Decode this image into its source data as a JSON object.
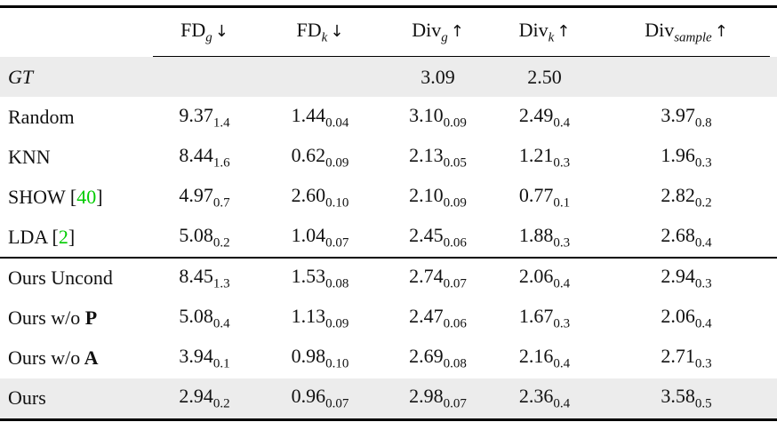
{
  "colors": {
    "highlight_row_bg": "#ececec",
    "citation_green": "#00cc00",
    "rule_black": "#000000"
  },
  "header": {
    "columns": [
      {
        "base": "FD",
        "sub": "g",
        "arrow": "↓"
      },
      {
        "base": "FD",
        "sub": "k",
        "arrow": "↓"
      },
      {
        "base": "Div",
        "sub": "g",
        "arrow": "↑"
      },
      {
        "base": "Div",
        "sub": "k",
        "arrow": "↑"
      },
      {
        "base": "Div",
        "sub": "sample",
        "arrow": "↑"
      }
    ]
  },
  "layout": {
    "midrule_after_index": 4
  },
  "rows": [
    {
      "method": {
        "prefix": "GT",
        "italic": true
      },
      "highlight": true,
      "cells": [
        {
          "v": "",
          "s": ""
        },
        {
          "v": "",
          "s": ""
        },
        {
          "v": "3.09",
          "s": ""
        },
        {
          "v": "2.50",
          "s": ""
        },
        {
          "v": "",
          "s": ""
        }
      ]
    },
    {
      "method": {
        "prefix": "Random"
      },
      "highlight": false,
      "cells": [
        {
          "v": "9.37",
          "s": "1.4"
        },
        {
          "v": "1.44",
          "s": "0.04"
        },
        {
          "v": "3.10",
          "s": "0.09"
        },
        {
          "v": "2.49",
          "s": "0.4"
        },
        {
          "v": "3.97",
          "s": "0.8"
        }
      ]
    },
    {
      "method": {
        "prefix": "KNN"
      },
      "highlight": false,
      "cells": [
        {
          "v": "8.44",
          "s": "1.6"
        },
        {
          "v": "0.62",
          "s": "0.09"
        },
        {
          "v": "2.13",
          "s": "0.05"
        },
        {
          "v": "1.21",
          "s": "0.3"
        },
        {
          "v": "1.96",
          "s": "0.3"
        }
      ]
    },
    {
      "method": {
        "prefix": "SHOW",
        "cite": "40"
      },
      "highlight": false,
      "cells": [
        {
          "v": "4.97",
          "s": "0.7"
        },
        {
          "v": "2.60",
          "s": "0.10"
        },
        {
          "v": "2.10",
          "s": "0.09"
        },
        {
          "v": "0.77",
          "s": "0.1"
        },
        {
          "v": "2.82",
          "s": "0.2"
        }
      ]
    },
    {
      "method": {
        "prefix": "LDA",
        "cite": "2"
      },
      "highlight": false,
      "cells": [
        {
          "v": "5.08",
          "s": "0.2"
        },
        {
          "v": "1.04",
          "s": "0.07"
        },
        {
          "v": "2.45",
          "s": "0.06"
        },
        {
          "v": "1.88",
          "s": "0.3"
        },
        {
          "v": "2.68",
          "s": "0.4"
        }
      ]
    },
    {
      "method": {
        "prefix": "Ours Uncond"
      },
      "highlight": false,
      "cells": [
        {
          "v": "8.45",
          "s": "1.3"
        },
        {
          "v": "1.53",
          "s": "0.08"
        },
        {
          "v": "2.74",
          "s": "0.07"
        },
        {
          "v": "2.06",
          "s": "0.4"
        },
        {
          "v": "2.94",
          "s": "0.3"
        }
      ]
    },
    {
      "method": {
        "prefix": "Ours w/o",
        "bold": "P"
      },
      "highlight": false,
      "cells": [
        {
          "v": "5.08",
          "s": "0.4"
        },
        {
          "v": "1.13",
          "s": "0.09"
        },
        {
          "v": "2.47",
          "s": "0.06"
        },
        {
          "v": "1.67",
          "s": "0.3"
        },
        {
          "v": "2.06",
          "s": "0.4"
        }
      ]
    },
    {
      "method": {
        "prefix": "Ours w/o",
        "bold": "A"
      },
      "highlight": false,
      "cells": [
        {
          "v": "3.94",
          "s": "0.1"
        },
        {
          "v": "0.98",
          "s": "0.10"
        },
        {
          "v": "2.69",
          "s": "0.08"
        },
        {
          "v": "2.16",
          "s": "0.4"
        },
        {
          "v": "2.71",
          "s": "0.3"
        }
      ]
    },
    {
      "method": {
        "prefix": "Ours"
      },
      "highlight": true,
      "cells": [
        {
          "v": "2.94",
          "s": "0.2"
        },
        {
          "v": "0.96",
          "s": "0.07"
        },
        {
          "v": "2.98",
          "s": "0.07"
        },
        {
          "v": "2.36",
          "s": "0.4"
        },
        {
          "v": "3.58",
          "s": "0.5"
        }
      ]
    }
  ]
}
